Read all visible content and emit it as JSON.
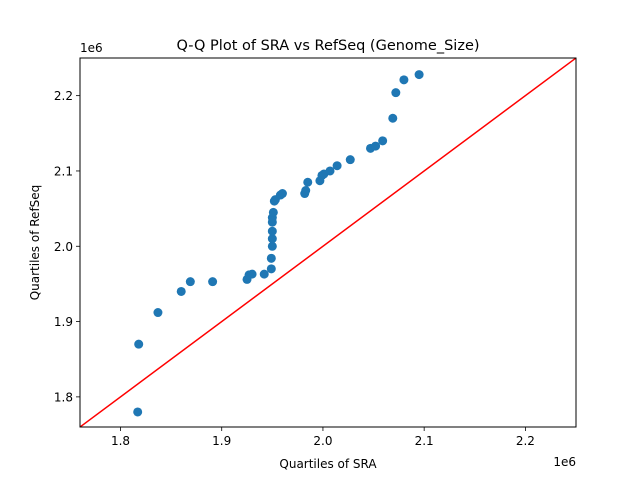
{
  "chart_data": {
    "type": "scatter",
    "title": "Q-Q Plot of SRA vs RefSeq (Genome_Size)",
    "xlabel": "Quartiles of SRA",
    "ylabel": "Quartiles of RefSeq",
    "x_offset_label": "1e6",
    "y_offset_label": "1e6",
    "xlim": [
      1760000,
      2250000
    ],
    "ylim": [
      1760000,
      2250000
    ],
    "x_ticks": [
      1800000,
      1900000,
      2000000,
      2100000,
      2200000
    ],
    "x_tick_labels": [
      "1.8",
      "1.9",
      "2.0",
      "2.1",
      "2.2"
    ],
    "y_ticks": [
      1800000,
      1900000,
      2000000,
      2100000,
      2200000
    ],
    "y_tick_labels": [
      "1.8",
      "1.9",
      "2.0",
      "2.1",
      "2.2"
    ],
    "grid": false,
    "legend": "none",
    "points": [
      {
        "x": 1817000,
        "y": 1780000
      },
      {
        "x": 1818000,
        "y": 1870000
      },
      {
        "x": 1837000,
        "y": 1912000
      },
      {
        "x": 1860000,
        "y": 1940000
      },
      {
        "x": 1869000,
        "y": 1953000
      },
      {
        "x": 1891000,
        "y": 1953000
      },
      {
        "x": 1925000,
        "y": 1956000
      },
      {
        "x": 1927000,
        "y": 1962000
      },
      {
        "x": 1930000,
        "y": 1963000
      },
      {
        "x": 1942000,
        "y": 1963000
      },
      {
        "x": 1949000,
        "y": 1970000
      },
      {
        "x": 1949000,
        "y": 1984000
      },
      {
        "x": 1950000,
        "y": 2000000
      },
      {
        "x": 1950000,
        "y": 2010000
      },
      {
        "x": 1950000,
        "y": 2020000
      },
      {
        "x": 1950000,
        "y": 2032000
      },
      {
        "x": 1950000,
        "y": 2038000
      },
      {
        "x": 1951000,
        "y": 2045000
      },
      {
        "x": 1952000,
        "y": 2060000
      },
      {
        "x": 1953000,
        "y": 2062000
      },
      {
        "x": 1958000,
        "y": 2068000
      },
      {
        "x": 1960000,
        "y": 2070000
      },
      {
        "x": 1982000,
        "y": 2070000
      },
      {
        "x": 1983000,
        "y": 2074000
      },
      {
        "x": 1985000,
        "y": 2085000
      },
      {
        "x": 1997000,
        "y": 2087000
      },
      {
        "x": 1999000,
        "y": 2094000
      },
      {
        "x": 2001000,
        "y": 2096000
      },
      {
        "x": 2007000,
        "y": 2100000
      },
      {
        "x": 2014000,
        "y": 2107000
      },
      {
        "x": 2027000,
        "y": 2115000
      },
      {
        "x": 2047000,
        "y": 2130000
      },
      {
        "x": 2052000,
        "y": 2133000
      },
      {
        "x": 2059000,
        "y": 2140000
      },
      {
        "x": 2069000,
        "y": 2170000
      },
      {
        "x": 2072000,
        "y": 2204000
      },
      {
        "x": 2080000,
        "y": 2221000
      },
      {
        "x": 2095000,
        "y": 2228000
      }
    ],
    "reference_line": {
      "from": [
        1760000,
        1760000
      ],
      "to": [
        2250000,
        2250000
      ]
    },
    "colors": {
      "marker": "#1f77b4",
      "reference_line": "#ff0000",
      "axes": "#000000"
    }
  }
}
